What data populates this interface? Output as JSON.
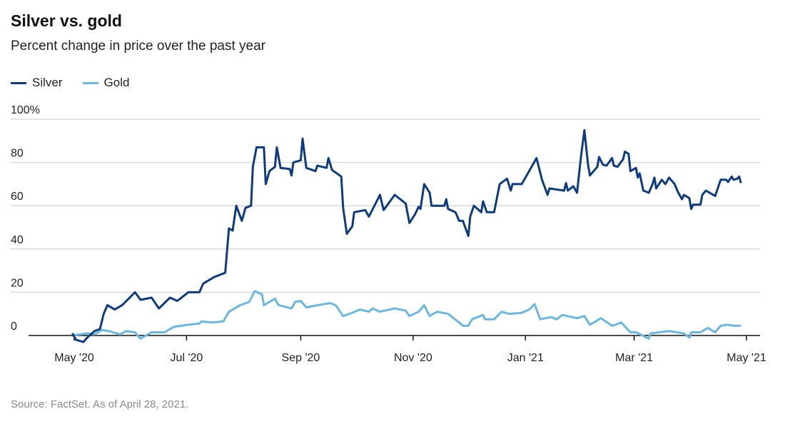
{
  "title": "Silver vs. gold",
  "subtitle": "Percent change in price over the past year",
  "source": "Source: FactSet. As of April 28, 2021.",
  "chart_data": {
    "type": "line",
    "title": "Silver vs. gold",
    "subtitle": "Percent change in price over the past year",
    "xlabel": "",
    "ylabel": "",
    "ylim": [
      0,
      100
    ],
    "y_ticks": [
      "100%",
      "80",
      "60",
      "40",
      "20",
      "0"
    ],
    "y_tick_values": [
      100,
      80,
      60,
      40,
      20,
      0
    ],
    "x_ticks": [
      "May '20",
      "Jul '20",
      "Sep '20",
      "Nov '20",
      "Jan '21",
      "Mar '21",
      "May '21"
    ],
    "x_tick_dates": [
      "2020-05-01",
      "2020-07-01",
      "2020-09-01",
      "2020-11-01",
      "2021-01-01",
      "2021-03-01",
      "2021-05-01"
    ],
    "xlim": [
      "2020-04-15",
      "2021-05-08"
    ],
    "grid": true,
    "legend": "top-left",
    "series": [
      {
        "name": "Silver",
        "color": "#0d3b7d",
        "points": [
          [
            "2020-04-30",
            1
          ],
          [
            "2020-05-02",
            -2
          ],
          [
            "2020-05-06",
            -3
          ],
          [
            "2020-05-08",
            -1
          ],
          [
            "2020-05-12",
            2
          ],
          [
            "2020-05-15",
            3
          ],
          [
            "2020-05-17",
            10
          ],
          [
            "2020-05-19",
            14
          ],
          [
            "2020-05-23",
            12
          ],
          [
            "2020-05-27",
            14
          ],
          [
            "2020-06-03",
            20
          ],
          [
            "2020-06-06",
            16.5
          ],
          [
            "2020-06-12",
            17.5
          ],
          [
            "2020-06-16",
            12.5
          ],
          [
            "2020-06-22",
            17.5
          ],
          [
            "2020-06-26",
            16
          ],
          [
            "2020-07-02",
            20
          ],
          [
            "2020-07-08",
            20
          ],
          [
            "2020-07-10",
            24
          ],
          [
            "2020-07-16",
            27
          ],
          [
            "2020-07-22",
            29
          ],
          [
            "2020-07-24",
            49.5
          ],
          [
            "2020-07-26",
            48.5
          ],
          [
            "2020-07-28",
            60
          ],
          [
            "2020-07-31",
            53
          ],
          [
            "2020-08-02",
            59
          ],
          [
            "2020-08-05",
            60
          ],
          [
            "2020-08-06",
            78
          ],
          [
            "2020-08-08",
            87
          ],
          [
            "2020-08-12",
            87
          ],
          [
            "2020-08-13",
            70
          ],
          [
            "2020-08-15",
            76
          ],
          [
            "2020-08-18",
            78
          ],
          [
            "2020-08-19",
            87
          ],
          [
            "2020-08-21",
            77.5
          ],
          [
            "2020-08-26",
            77
          ],
          [
            "2020-08-27",
            74
          ],
          [
            "2020-08-28",
            80
          ],
          [
            "2020-09-01",
            81
          ],
          [
            "2020-09-02",
            91
          ],
          [
            "2020-09-04",
            77.5
          ],
          [
            "2020-09-09",
            76
          ],
          [
            "2020-09-10",
            78.5
          ],
          [
            "2020-09-15",
            77.5
          ],
          [
            "2020-09-16",
            82
          ],
          [
            "2020-09-18",
            76.5
          ],
          [
            "2020-09-23",
            73.5
          ],
          [
            "2020-09-24",
            59
          ],
          [
            "2020-09-26",
            47
          ],
          [
            "2020-09-29",
            50.5
          ],
          [
            "2020-09-30",
            57
          ],
          [
            "2020-10-06",
            58
          ],
          [
            "2020-10-08",
            55
          ],
          [
            "2020-10-14",
            65
          ],
          [
            "2020-10-16",
            58
          ],
          [
            "2020-10-22",
            65
          ],
          [
            "2020-10-28",
            61
          ],
          [
            "2020-10-30",
            52
          ],
          [
            "2020-11-02",
            56
          ],
          [
            "2020-11-04",
            59.5
          ],
          [
            "2020-11-05",
            58.5
          ],
          [
            "2020-11-07",
            70
          ],
          [
            "2020-11-10",
            66
          ],
          [
            "2020-11-11",
            60
          ],
          [
            "2020-11-18",
            60
          ],
          [
            "2020-11-19",
            63
          ],
          [
            "2020-11-20",
            58.5
          ],
          [
            "2020-11-24",
            57
          ],
          [
            "2020-11-26",
            53
          ],
          [
            "2020-11-28",
            53
          ],
          [
            "2020-12-01",
            46
          ],
          [
            "2020-12-02",
            55
          ],
          [
            "2020-12-04",
            60
          ],
          [
            "2020-12-08",
            57
          ],
          [
            "2020-12-09",
            62
          ],
          [
            "2020-12-11",
            57
          ],
          [
            "2020-12-15",
            57
          ],
          [
            "2020-12-18",
            70
          ],
          [
            "2020-12-22",
            72.5
          ],
          [
            "2020-12-24",
            67
          ],
          [
            "2020-12-25",
            70
          ],
          [
            "2020-12-30",
            70
          ],
          [
            "2021-01-07",
            82
          ],
          [
            "2021-01-10",
            72
          ],
          [
            "2021-01-13",
            65
          ],
          [
            "2021-01-14",
            68
          ],
          [
            "2021-01-22",
            67
          ],
          [
            "2021-01-23",
            70.5
          ],
          [
            "2021-01-24",
            67
          ],
          [
            "2021-01-27",
            69
          ],
          [
            "2021-01-29",
            66
          ],
          [
            "2021-01-31",
            81.5
          ],
          [
            "2021-02-02",
            95
          ],
          [
            "2021-02-04",
            79
          ],
          [
            "2021-02-05",
            74
          ],
          [
            "2021-02-09",
            78
          ],
          [
            "2021-02-10",
            82.5
          ],
          [
            "2021-02-12",
            79
          ],
          [
            "2021-02-14",
            78.5
          ],
          [
            "2021-02-17",
            82
          ],
          [
            "2021-02-18",
            78.5
          ],
          [
            "2021-02-20",
            78
          ],
          [
            "2021-02-23",
            81.5
          ],
          [
            "2021-02-24",
            85
          ],
          [
            "2021-02-26",
            84
          ],
          [
            "2021-02-27",
            76
          ],
          [
            "2021-03-02",
            77.5
          ],
          [
            "2021-03-03",
            73
          ],
          [
            "2021-03-04",
            75
          ],
          [
            "2021-03-06",
            67
          ],
          [
            "2021-03-09",
            66
          ],
          [
            "2021-03-11",
            70
          ],
          [
            "2021-03-12",
            73
          ],
          [
            "2021-03-13",
            68
          ],
          [
            "2021-03-16",
            72
          ],
          [
            "2021-03-18",
            70
          ],
          [
            "2021-03-20",
            73
          ],
          [
            "2021-03-23",
            70
          ],
          [
            "2021-03-25",
            66
          ],
          [
            "2021-03-27",
            63
          ],
          [
            "2021-03-28",
            65
          ],
          [
            "2021-03-31",
            63.5
          ],
          [
            "2021-04-01",
            58.5
          ],
          [
            "2021-04-02",
            60.5
          ],
          [
            "2021-04-06",
            60.5
          ],
          [
            "2021-04-07",
            65
          ],
          [
            "2021-04-09",
            67
          ],
          [
            "2021-04-14",
            64.5
          ],
          [
            "2021-04-17",
            72
          ],
          [
            "2021-04-20",
            72
          ],
          [
            "2021-04-21",
            71
          ],
          [
            "2021-04-23",
            73.5
          ],
          [
            "2021-04-24",
            72
          ],
          [
            "2021-04-26",
            72.5
          ],
          [
            "2021-04-27",
            73.5
          ],
          [
            "2021-04-28",
            70.5
          ]
        ]
      },
      {
        "name": "Gold",
        "color": "#6bb7df",
        "points": [
          [
            "2020-04-30",
            0
          ],
          [
            "2020-05-08",
            1
          ],
          [
            "2020-05-12",
            0.5
          ],
          [
            "2020-05-16",
            2.5
          ],
          [
            "2020-05-20",
            2
          ],
          [
            "2020-05-26",
            0.5
          ],
          [
            "2020-05-29",
            2
          ],
          [
            "2020-06-03",
            1.5
          ],
          [
            "2020-06-06",
            -1.5
          ],
          [
            "2020-06-12",
            1.5
          ],
          [
            "2020-06-19",
            1.5
          ],
          [
            "2020-06-24",
            4
          ],
          [
            "2020-07-02",
            5
          ],
          [
            "2020-07-08",
            5.5
          ],
          [
            "2020-07-09",
            6.5
          ],
          [
            "2020-07-15",
            6
          ],
          [
            "2020-07-21",
            6.5
          ],
          [
            "2020-07-24",
            11
          ],
          [
            "2020-07-30",
            14
          ],
          [
            "2020-08-04",
            15.5
          ],
          [
            "2020-08-07",
            20.5
          ],
          [
            "2020-08-11",
            19
          ],
          [
            "2020-08-12",
            14
          ],
          [
            "2020-08-18",
            17
          ],
          [
            "2020-08-20",
            14
          ],
          [
            "2020-08-27",
            12.5
          ],
          [
            "2020-08-29",
            15.5
          ],
          [
            "2020-09-01",
            16
          ],
          [
            "2020-09-04",
            13
          ],
          [
            "2020-09-10",
            14
          ],
          [
            "2020-09-17",
            15
          ],
          [
            "2020-09-20",
            14
          ],
          [
            "2020-09-24",
            9
          ],
          [
            "2020-09-29",
            10.5
          ],
          [
            "2020-10-03",
            12
          ],
          [
            "2020-10-08",
            11
          ],
          [
            "2020-10-10",
            12.5
          ],
          [
            "2020-10-14",
            11
          ],
          [
            "2020-10-22",
            12.5
          ],
          [
            "2020-10-28",
            11.5
          ],
          [
            "2020-10-30",
            9
          ],
          [
            "2020-11-04",
            11
          ],
          [
            "2020-11-07",
            14
          ],
          [
            "2020-11-10",
            9
          ],
          [
            "2020-11-14",
            11
          ],
          [
            "2020-11-20",
            10
          ],
          [
            "2020-11-26",
            6
          ],
          [
            "2020-11-28",
            4.5
          ],
          [
            "2020-12-01",
            4.5
          ],
          [
            "2020-12-03",
            7.5
          ],
          [
            "2020-12-09",
            9.5
          ],
          [
            "2020-12-10",
            7.5
          ],
          [
            "2020-12-15",
            7.5
          ],
          [
            "2020-12-19",
            11
          ],
          [
            "2020-12-23",
            10
          ],
          [
            "2020-12-30",
            10.5
          ],
          [
            "2021-01-03",
            12
          ],
          [
            "2021-01-06",
            14.5
          ],
          [
            "2021-01-09",
            7.5
          ],
          [
            "2021-01-15",
            8.5
          ],
          [
            "2021-01-18",
            7.5
          ],
          [
            "2021-01-21",
            9.5
          ],
          [
            "2021-01-29",
            8
          ],
          [
            "2021-02-02",
            9
          ],
          [
            "2021-02-05",
            5
          ],
          [
            "2021-02-11",
            8
          ],
          [
            "2021-02-17",
            4.5
          ],
          [
            "2021-02-22",
            6
          ],
          [
            "2021-02-27",
            1.5
          ],
          [
            "2021-03-02",
            1.5
          ],
          [
            "2021-03-09",
            -1.5
          ],
          [
            "2021-03-10",
            1
          ],
          [
            "2021-03-20",
            2
          ],
          [
            "2021-03-28",
            1
          ],
          [
            "2021-03-31",
            -1
          ],
          [
            "2021-04-01",
            1.5
          ],
          [
            "2021-04-06",
            1.5
          ],
          [
            "2021-04-10",
            3.5
          ],
          [
            "2021-04-14",
            1.5
          ],
          [
            "2021-04-17",
            4.5
          ],
          [
            "2021-04-21",
            5
          ],
          [
            "2021-04-24",
            4.5
          ],
          [
            "2021-04-28",
            4.5
          ]
        ]
      }
    ]
  }
}
